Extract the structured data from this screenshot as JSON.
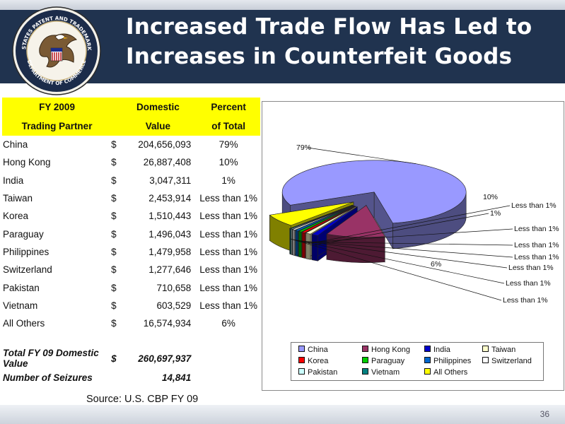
{
  "slide": {
    "title_line1": "Increased Trade Flow Has Led to",
    "title_line2": "Increases in Counterfeit Goods",
    "seal_text_top": "UNITED STATES PATENT AND TRADEMARK OFFICE",
    "seal_text_bottom": "DEPARTMENT OF COMMERCE",
    "source": "Source: U.S. CBP FY 09",
    "page_number": "36"
  },
  "table": {
    "headers": {
      "col1_line1": "FY 2009",
      "col1_line2": "Trading Partner",
      "col2_line1": "Domestic",
      "col2_line2": "Value",
      "col3_line1": "Percent",
      "col3_line2": "of Total"
    },
    "rows": [
      {
        "partner": "China",
        "currency": "$",
        "value": "204,656,093",
        "percent": "79%"
      },
      {
        "partner": "Hong Kong",
        "currency": "$",
        "value": "26,887,408",
        "percent": "10%"
      },
      {
        "partner": "India",
        "currency": "$",
        "value": "3,047,311",
        "percent": "1%"
      },
      {
        "partner": "Taiwan",
        "currency": "$",
        "value": "2,453,914",
        "percent": "Less than 1%"
      },
      {
        "partner": "Korea",
        "currency": "$",
        "value": "1,510,443",
        "percent": "Less than 1%"
      },
      {
        "partner": "Paraguay",
        "currency": "$",
        "value": "1,496,043",
        "percent": "Less than 1%"
      },
      {
        "partner": "Philippines",
        "currency": "$",
        "value": "1,479,958",
        "percent": "Less than 1%"
      },
      {
        "partner": "Switzerland",
        "currency": "$",
        "value": "1,277,646",
        "percent": "Less than 1%"
      },
      {
        "partner": "Pakistan",
        "currency": "$",
        "value": "710,658",
        "percent": "Less than 1%"
      },
      {
        "partner": "Vietnam",
        "currency": "$",
        "value": "603,529",
        "percent": "Less than 1%"
      },
      {
        "partner": "All Others",
        "currency": "$",
        "value": "16,574,934",
        "percent": "6%"
      }
    ],
    "total_label": "Total FY 09 Domestic Value",
    "total_currency": "$",
    "total_value": "260,697,937",
    "seizures_label": "Number of Seizures",
    "seizures_value": "14,841"
  },
  "chart_data": {
    "type": "pie",
    "style": "3d-exploded",
    "categories": [
      "China",
      "Hong Kong",
      "India",
      "Taiwan",
      "Korea",
      "Paraguay",
      "Philippines",
      "Switzerland",
      "Pakistan",
      "Vietnam",
      "All Others"
    ],
    "values": [
      204656093,
      26887408,
      3047311,
      2453914,
      1510443,
      1496043,
      1479958,
      1277646,
      710658,
      603529,
      16574934
    ],
    "slice_labels": [
      "79%",
      "10%",
      "1%",
      "Less than 1%",
      "Less than 1%",
      "Less than 1%",
      "Less than 1%",
      "Less than 1%",
      "Less than 1%",
      "Less than 1%",
      "6%"
    ],
    "colors": [
      "#9999ff",
      "#993366",
      "#0000cc",
      "#ffffcc",
      "#ff0000",
      "#00cc00",
      "#0066cc",
      "#ffffff",
      "#ccffff",
      "#008080",
      "#ffff00"
    ],
    "legend_position": "bottom"
  }
}
